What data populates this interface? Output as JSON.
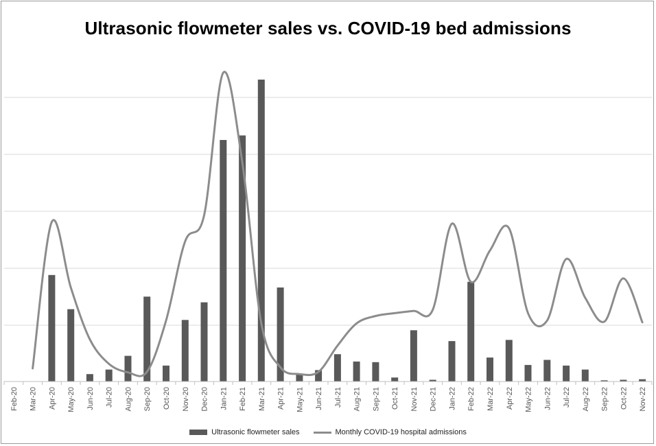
{
  "chart_data": {
    "type": "bar",
    "title": "Ultrasonic flowmeter sales vs. COVID-19 bed admissions",
    "xlabel": "",
    "ylabel": "",
    "grid": true,
    "legend_position": "bottom",
    "categories": [
      "Feb-20",
      "Mar-20",
      "Apr-20",
      "May-20",
      "Jun-20",
      "Jul-20",
      "Aug-20",
      "Sep-20",
      "Oct-20",
      "Nov-20",
      "Dec-20",
      "Jan-21",
      "Feb-21",
      "Mar-21",
      "Apr-21",
      "May-21",
      "Jun-21",
      "Jul-21",
      "Aug-21",
      "Sep-21",
      "Oct-21",
      "Nov-21",
      "Dec-21",
      "Jan-22",
      "Feb-22",
      "Mar-22",
      "Apr-22",
      "May-22",
      "Jun-22",
      "Jul-22",
      "Aug-22",
      "Sep-22",
      "Oct-22",
      "Nov-22"
    ],
    "ylim": [
      0,
      5.3
    ],
    "series": [
      {
        "name": "Ultrasonic flowmeter sales",
        "type": "bar",
        "color": "#595959",
        "values": [
          0,
          0,
          1.87,
          1.27,
          0.13,
          0.21,
          0.45,
          1.49,
          0.28,
          1.08,
          1.39,
          4.24,
          4.32,
          5.3,
          1.65,
          0.12,
          0.2,
          0.48,
          0.35,
          0.34,
          0.07,
          0.9,
          0.03,
          0.71,
          1.75,
          0.42,
          0.73,
          0.29,
          0.38,
          0.28,
          0.21,
          0.02,
          0.03,
          0.04
        ]
      },
      {
        "name": "Monthly COVID-19 hospital admissions",
        "type": "line",
        "color": "#8c8c8c",
        "values": [
          null,
          0.23,
          2.8,
          1.65,
          0.74,
          0.31,
          0.16,
          0.17,
          1.07,
          2.46,
          2.92,
          5.42,
          3.85,
          1.02,
          0.25,
          0.13,
          0.17,
          0.63,
          1.02,
          1.15,
          1.2,
          1.24,
          1.26,
          2.77,
          1.75,
          2.3,
          2.69,
          1.2,
          1.07,
          2.15,
          1.47,
          1.05,
          1.81,
          1.04
        ]
      }
    ]
  }
}
